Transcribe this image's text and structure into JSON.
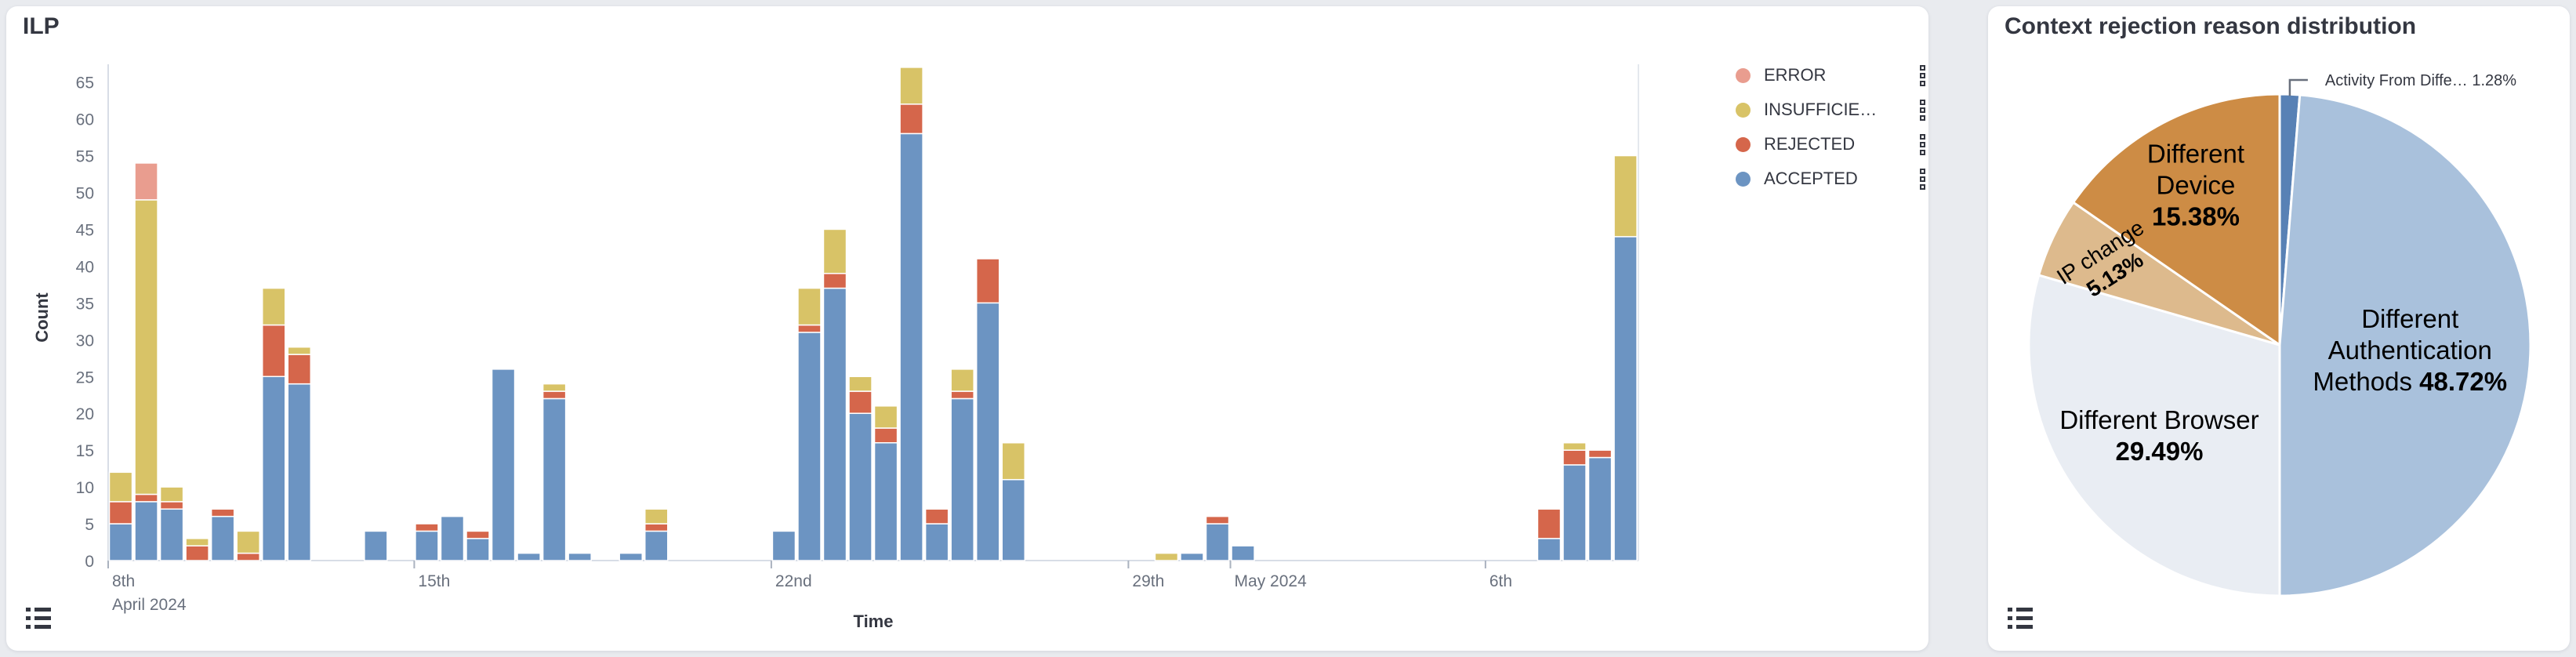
{
  "page": {
    "background": "#e9ebef"
  },
  "chart_data": [
    {
      "type": "bar",
      "title": "ILP",
      "stacked": true,
      "xlabel": "Time",
      "ylabel": "Count",
      "ylim": [
        0,
        65
      ],
      "grid": false,
      "legend_position": "right",
      "y_ticks": [
        0,
        5,
        10,
        15,
        20,
        25,
        30,
        35,
        40,
        45,
        50,
        55,
        60,
        65
      ],
      "x_unit": "12-hour buckets, 2024-04-09 to 2024-05-09",
      "x_ticks": [
        {
          "label": "8th",
          "sublabel": "April 2024",
          "day": 0
        },
        {
          "label": "15th",
          "day": 6
        },
        {
          "label": "22nd",
          "day": 13
        },
        {
          "label": "29th",
          "day": 20
        },
        {
          "label": "May 2024",
          "day": 22
        },
        {
          "label": "6th",
          "day": 27
        }
      ],
      "series": [
        {
          "name": "ACCEPTED",
          "color": "#6C94C2"
        },
        {
          "name": "REJECTED",
          "color": "#D5664B"
        },
        {
          "name": "INSUFFICIENT",
          "color": "#D8C367"
        },
        {
          "name": "ERROR",
          "color": "#E99D8F"
        }
      ],
      "legend": [
        {
          "label": "ERROR",
          "color": "#E99D8F"
        },
        {
          "label": "INSUFFICIE…",
          "color": "#D8C367"
        },
        {
          "label": "REJECTED",
          "color": "#D5664B"
        },
        {
          "label": "ACCEPTED",
          "color": "#6C94C2"
        }
      ],
      "bars": [
        {
          "time": "Apr 9 AM",
          "slot": 0,
          "ACCEPTED": 5,
          "REJECTED": 3,
          "INSUFFICIENT": 4,
          "ERROR": 0
        },
        {
          "time": "Apr 9 PM",
          "slot": 1,
          "ACCEPTED": 8,
          "REJECTED": 1,
          "INSUFFICIENT": 40,
          "ERROR": 5
        },
        {
          "time": "Apr 10 AM",
          "slot": 2,
          "ACCEPTED": 7,
          "REJECTED": 1,
          "INSUFFICIENT": 2,
          "ERROR": 0
        },
        {
          "time": "Apr 10 PM",
          "slot": 3,
          "ACCEPTED": 0,
          "REJECTED": 2,
          "INSUFFICIENT": 1,
          "ERROR": 0
        },
        {
          "time": "Apr 11 AM",
          "slot": 4,
          "ACCEPTED": 6,
          "REJECTED": 1,
          "INSUFFICIENT": 0,
          "ERROR": 0
        },
        {
          "time": "Apr 11 PM",
          "slot": 5,
          "ACCEPTED": 0,
          "REJECTED": 1,
          "INSUFFICIENT": 3,
          "ERROR": 0
        },
        {
          "time": "Apr 12 AM",
          "slot": 6,
          "ACCEPTED": 25,
          "REJECTED": 7,
          "INSUFFICIENT": 5,
          "ERROR": 0
        },
        {
          "time": "Apr 12 PM",
          "slot": 7,
          "ACCEPTED": 24,
          "REJECTED": 4,
          "INSUFFICIENT": 1,
          "ERROR": 0
        },
        {
          "time": "Apr 14 AM",
          "slot": 10,
          "ACCEPTED": 4,
          "REJECTED": 0,
          "INSUFFICIENT": 0,
          "ERROR": 0
        },
        {
          "time": "Apr 15 AM",
          "slot": 12,
          "ACCEPTED": 4,
          "REJECTED": 1,
          "INSUFFICIENT": 0,
          "ERROR": 0
        },
        {
          "time": "Apr 15 PM",
          "slot": 13,
          "ACCEPTED": 6,
          "REJECTED": 0,
          "INSUFFICIENT": 0,
          "ERROR": 0
        },
        {
          "time": "Apr 16 AM",
          "slot": 14,
          "ACCEPTED": 3,
          "REJECTED": 1,
          "INSUFFICIENT": 0,
          "ERROR": 0
        },
        {
          "time": "Apr 16 PM",
          "slot": 15,
          "ACCEPTED": 26,
          "REJECTED": 0,
          "INSUFFICIENT": 0,
          "ERROR": 0
        },
        {
          "time": "Apr 17 AM",
          "slot": 16,
          "ACCEPTED": 1,
          "REJECTED": 0,
          "INSUFFICIENT": 0,
          "ERROR": 0
        },
        {
          "time": "Apr 17 PM",
          "slot": 17,
          "ACCEPTED": 22,
          "REJECTED": 1,
          "INSUFFICIENT": 1,
          "ERROR": 0
        },
        {
          "time": "Apr 18 AM",
          "slot": 18,
          "ACCEPTED": 1,
          "REJECTED": 0,
          "INSUFFICIENT": 0,
          "ERROR": 0
        },
        {
          "time": "Apr 19 AM",
          "slot": 20,
          "ACCEPTED": 1,
          "REJECTED": 0,
          "INSUFFICIENT": 0,
          "ERROR": 0
        },
        {
          "time": "Apr 19 PM",
          "slot": 21,
          "ACCEPTED": 4,
          "REJECTED": 1,
          "INSUFFICIENT": 2,
          "ERROR": 0
        },
        {
          "time": "Apr 22 AM",
          "slot": 26,
          "ACCEPTED": 4,
          "REJECTED": 0,
          "INSUFFICIENT": 0,
          "ERROR": 0
        },
        {
          "time": "Apr 22 PM",
          "slot": 27,
          "ACCEPTED": 31,
          "REJECTED": 1,
          "INSUFFICIENT": 5,
          "ERROR": 0
        },
        {
          "time": "Apr 23 AM",
          "slot": 28,
          "ACCEPTED": 37,
          "REJECTED": 2,
          "INSUFFICIENT": 6,
          "ERROR": 0
        },
        {
          "time": "Apr 23 PM",
          "slot": 29,
          "ACCEPTED": 20,
          "REJECTED": 3,
          "INSUFFICIENT": 2,
          "ERROR": 0
        },
        {
          "time": "Apr 24 AM",
          "slot": 30,
          "ACCEPTED": 16,
          "REJECTED": 2,
          "INSUFFICIENT": 3,
          "ERROR": 0
        },
        {
          "time": "Apr 24 PM",
          "slot": 31,
          "ACCEPTED": 58,
          "REJECTED": 4,
          "INSUFFICIENT": 5,
          "ERROR": 0
        },
        {
          "time": "Apr 25 AM",
          "slot": 32,
          "ACCEPTED": 5,
          "REJECTED": 2,
          "INSUFFICIENT": 0,
          "ERROR": 0
        },
        {
          "time": "Apr 25 PM",
          "slot": 33,
          "ACCEPTED": 22,
          "REJECTED": 1,
          "INSUFFICIENT": 3,
          "ERROR": 0
        },
        {
          "time": "Apr 26 AM",
          "slot": 34,
          "ACCEPTED": 35,
          "REJECTED": 6,
          "INSUFFICIENT": 0,
          "ERROR": 0
        },
        {
          "time": "Apr 26 PM",
          "slot": 35,
          "ACCEPTED": 11,
          "REJECTED": 0,
          "INSUFFICIENT": 5,
          "ERROR": 0
        },
        {
          "time": "Apr 29 PM",
          "slot": 41,
          "ACCEPTED": 0,
          "REJECTED": 0,
          "INSUFFICIENT": 1,
          "ERROR": 0
        },
        {
          "time": "Apr 30 AM",
          "slot": 42,
          "ACCEPTED": 1,
          "REJECTED": 0,
          "INSUFFICIENT": 0,
          "ERROR": 0
        },
        {
          "time": "Apr 30 PM",
          "slot": 43,
          "ACCEPTED": 5,
          "REJECTED": 1,
          "INSUFFICIENT": 0,
          "ERROR": 0
        },
        {
          "time": "May 1 AM",
          "slot": 44,
          "ACCEPTED": 2,
          "REJECTED": 0,
          "INSUFFICIENT": 0,
          "ERROR": 0
        },
        {
          "time": "May 7 AM",
          "slot": 56,
          "ACCEPTED": 3,
          "REJECTED": 4,
          "INSUFFICIENT": 0,
          "ERROR": 0
        },
        {
          "time": "May 7 PM",
          "slot": 57,
          "ACCEPTED": 13,
          "REJECTED": 2,
          "INSUFFICIENT": 1,
          "ERROR": 0
        },
        {
          "time": "May 8 AM",
          "slot": 58,
          "ACCEPTED": 14,
          "REJECTED": 1,
          "INSUFFICIENT": 0,
          "ERROR": 0
        },
        {
          "time": "May 8 PM",
          "slot": 59,
          "ACCEPTED": 44,
          "REJECTED": 0,
          "INSUFFICIENT": 11,
          "ERROR": 0
        }
      ]
    },
    {
      "type": "pie",
      "title": "Context rejection reason distribution",
      "start_angle_deg": 0,
      "clockwise": true,
      "slices": [
        {
          "label": "Activity From Diffe…",
          "pct": 1.28,
          "pct_display": "1.28%",
          "color": "#5881B5",
          "label_placement": "callout"
        },
        {
          "label": "Different Authentication Methods",
          "pct": 48.72,
          "pct_display": "48.72%",
          "color": "#A9C1DC",
          "label_lines": [
            "Different",
            "Authentication",
            "Methods 48.72%"
          ]
        },
        {
          "label": "Different Browser",
          "pct": 29.49,
          "pct_display": "29.49%",
          "color": "#E9EDF3",
          "label_lines": [
            "Different Browser",
            "29.49%"
          ]
        },
        {
          "label": "IP change",
          "pct": 5.13,
          "pct_display": "5.13%",
          "color": "#DDBA8D",
          "label_lines": [
            "IP change",
            "5.13%"
          ]
        },
        {
          "label": "Different Device",
          "pct": 15.38,
          "pct_display": "15.38%",
          "color": "#CD8C45",
          "label_lines": [
            "Different",
            "Device",
            "15.38%"
          ]
        }
      ],
      "callout_text": "Activity From Diffe…  1.28%"
    }
  ]
}
